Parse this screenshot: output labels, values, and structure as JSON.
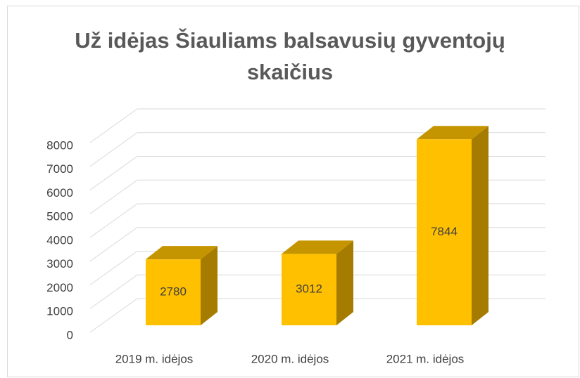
{
  "chart_data": {
    "type": "bar3d",
    "title": "Už idėjas Šiauliams balsavusių gyventojų skaičius",
    "categories": [
      "2019 m. idėjos",
      "2020 m. idėjos",
      "2021 m. idėjos"
    ],
    "values": [
      2780,
      3012,
      7844
    ],
    "color": "#ffc000",
    "ylim": [
      0,
      8000
    ],
    "yticks": [
      0,
      1000,
      2000,
      3000,
      4000,
      5000,
      6000,
      7000,
      8000
    ],
    "grid": true
  }
}
